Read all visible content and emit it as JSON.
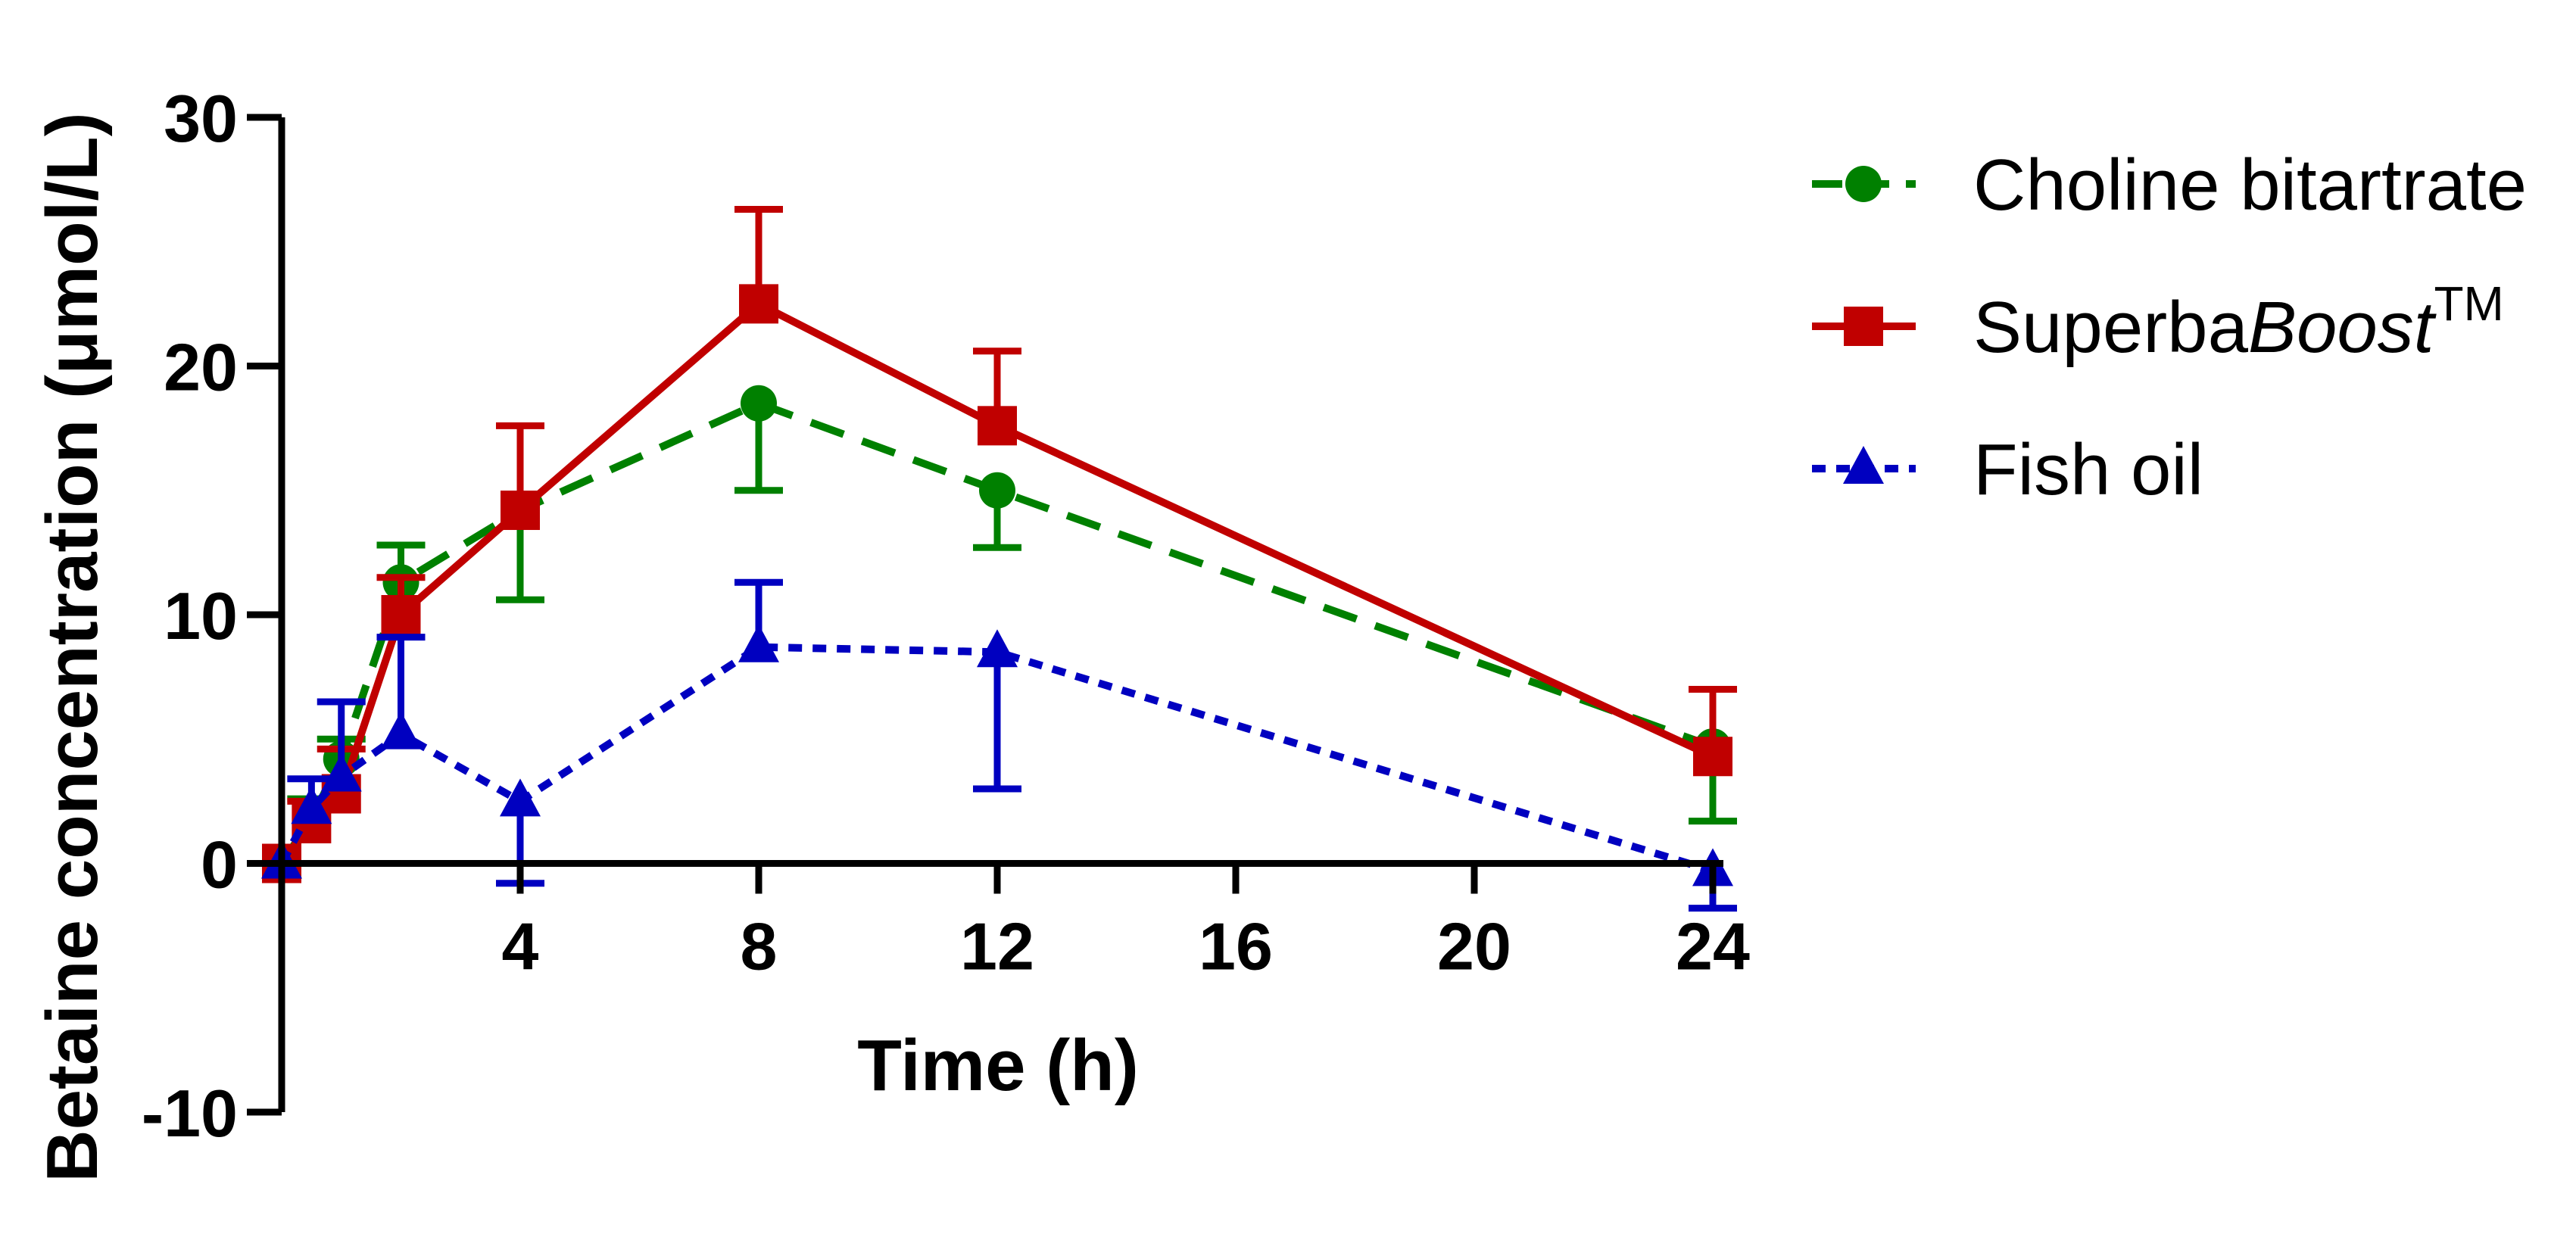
{
  "chart_data": {
    "type": "line",
    "title": "",
    "xlabel": "Time (h)",
    "ylabel": "Betaine concentration (μmol/L)",
    "xlim": [
      0,
      24
    ],
    "ylim": [
      -10,
      30
    ],
    "xticks": [
      4,
      8,
      12,
      16,
      20,
      24
    ],
    "yticks": [
      -10,
      0,
      10,
      20,
      30
    ],
    "xtick_labels": [
      "4",
      "8",
      "12",
      "16",
      "20",
      "24"
    ],
    "ytick_labels": [
      "-10",
      "0",
      "10",
      "20",
      "30"
    ],
    "legend_position": "right",
    "series": [
      {
        "name": "Choline bitartrate",
        "legend_main": "Choline bitartrate",
        "legend_italic": "",
        "legend_super": "",
        "color": "#008000",
        "marker": "circle",
        "dash": "dashed",
        "x": [
          0,
          0.5,
          1,
          2,
          4,
          8,
          12,
          24
        ],
        "y": [
          0,
          1.8,
          4.2,
          11.3,
          14.2,
          18.5,
          15.0,
          4.7
        ],
        "err": [
          0,
          0.8,
          0.8,
          1.5,
          3.6,
          3.5,
          2.3,
          3.0
        ]
      },
      {
        "name": "SuperbaBoost™",
        "legend_main": "Superba",
        "legend_italic": "Boost",
        "legend_super": "TM",
        "color": "#c00000",
        "marker": "square",
        "dash": "solid",
        "x": [
          0,
          0.5,
          1,
          2,
          4,
          8,
          12,
          24
        ],
        "y": [
          0,
          1.6,
          2.8,
          10.0,
          14.2,
          22.5,
          17.6,
          4.3
        ],
        "err": [
          0,
          0.9,
          1.8,
          1.5,
          3.4,
          3.8,
          3.0,
          2.7
        ]
      },
      {
        "name": "Fish oil",
        "legend_main": "Fish oil",
        "legend_italic": "",
        "legend_super": "",
        "color": "#0000c0",
        "marker": "triangle",
        "dash": "dotted",
        "x": [
          0,
          0.5,
          1,
          2,
          4,
          8,
          12,
          24
        ],
        "y": [
          0,
          2.2,
          3.5,
          5.2,
          2.5,
          8.7,
          8.5,
          -0.3
        ],
        "err": [
          0,
          1.2,
          3.0,
          3.9,
          3.3,
          2.6,
          5.5,
          1.5
        ]
      }
    ]
  }
}
